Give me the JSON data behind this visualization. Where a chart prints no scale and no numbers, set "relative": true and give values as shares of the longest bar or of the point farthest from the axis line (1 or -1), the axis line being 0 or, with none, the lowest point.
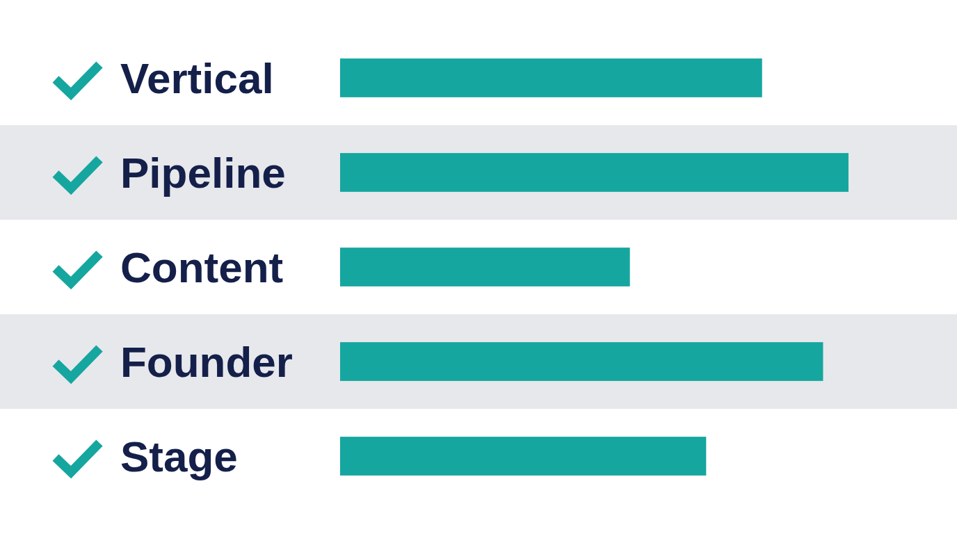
{
  "chart_data": {
    "type": "bar",
    "orientation": "horizontal",
    "relative": true,
    "categories": [
      "Vertical",
      "Pipeline",
      "Content",
      "Founder",
      "Stage"
    ],
    "values": [
      0.83,
      1,
      0.57,
      0.95,
      0.72
    ],
    "color": "#16a6a0",
    "bands": [
      {
        "axis": "y",
        "from": "Pipeline",
        "to": "Pipeline",
        "color": "#e7e8eb"
      },
      {
        "axis": "y",
        "from": "Founder",
        "to": "Founder",
        "color": "#e7e8eb"
      }
    ]
  }
}
